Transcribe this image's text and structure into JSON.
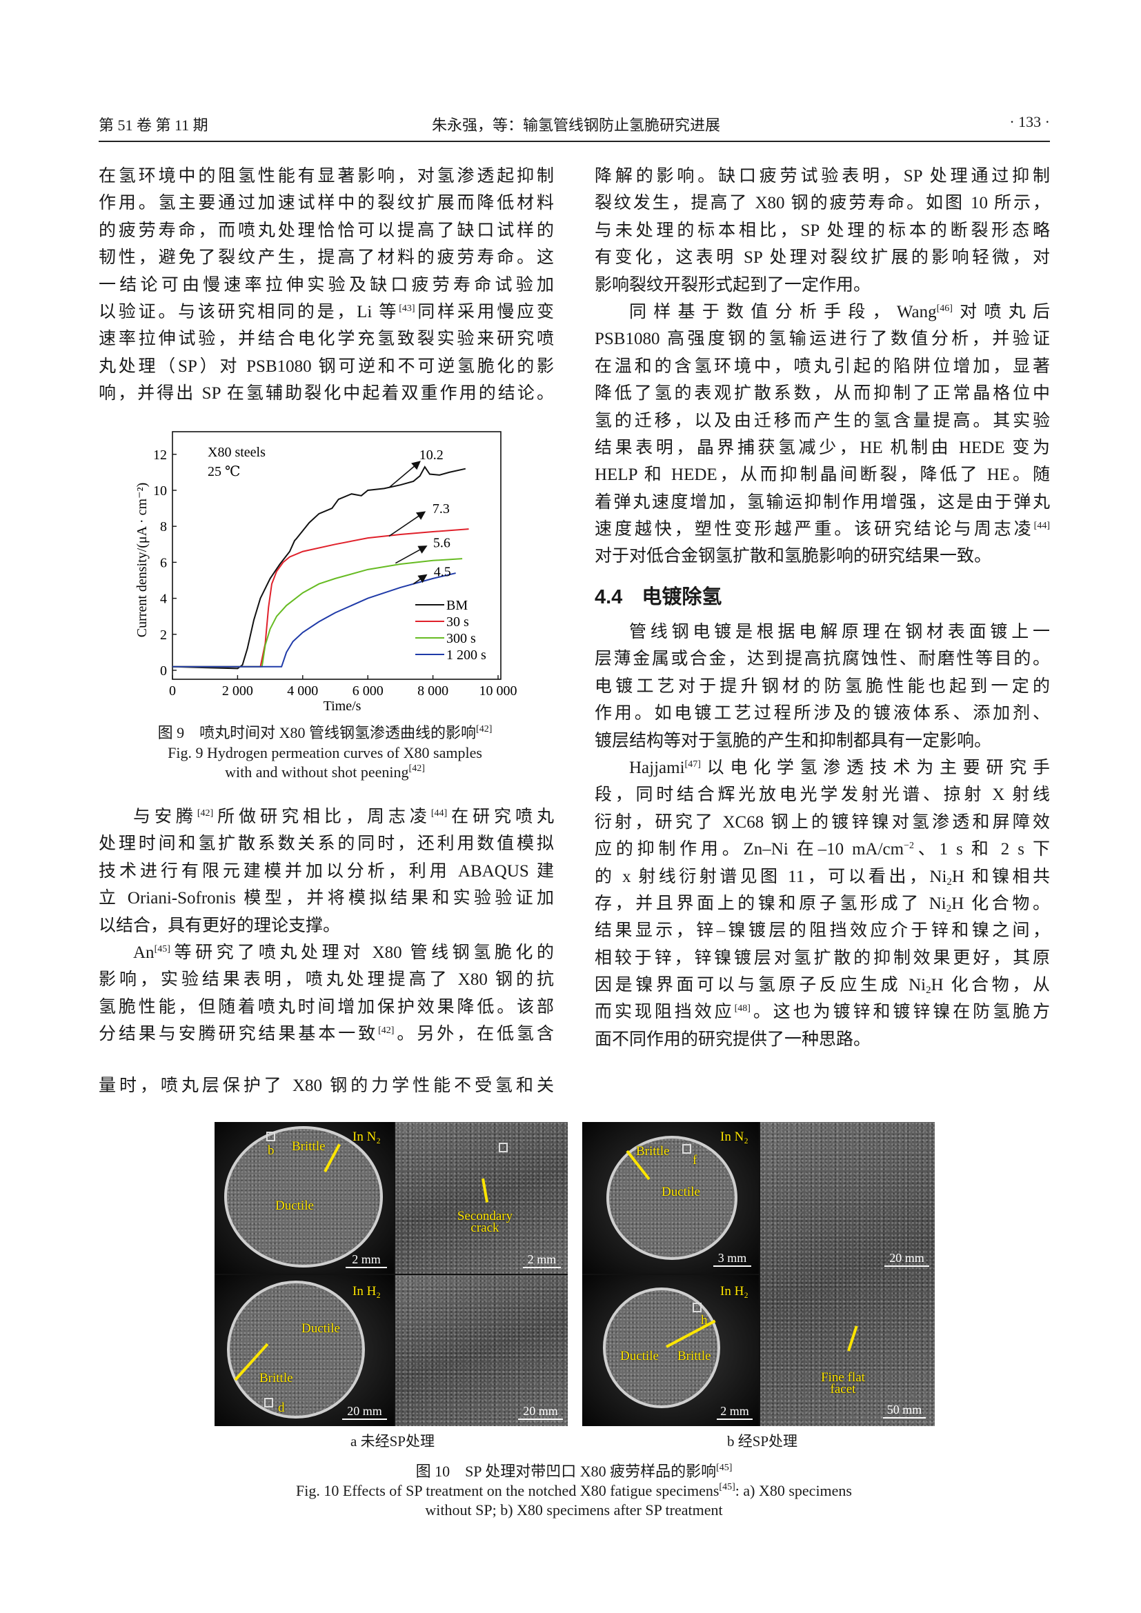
{
  "header": {
    "volume_issue": "第 51 卷  第 11 期",
    "running_title": "朱永强，等：输氢管线钢防止氢脆研究进展",
    "page_number": "· 133 ·"
  },
  "left_top": {
    "paragraphs": [
      {
        "indent": false,
        "lines": [
          "在氢环境中的阻氢性能有显著影响，对氢渗透起抑制",
          "作用。氢主要通过加速试样中的裂纹扩展而降低材料",
          "的疲劳寿命，而喷丸处理恰恰可以提高了缺口试样的",
          "韧性，避免了裂纹产生，提高了材料的疲劳寿命。这",
          "一结论可由慢速率拉伸实验及缺口疲劳寿命试验加",
          [
            "以验证。与该研究相同的是，Li 等",
            {
              "sup": "[43]"
            },
            "同样采用慢应变"
          ],
          "速率拉伸试验，并结合电化学充氢致裂实验来研究喷",
          "丸处理（SP）对 PSB1080 钢可逆和不可逆氢脆化的影",
          "响，并得出 SP 在氢辅助裂化中起着双重作用的结论。"
        ]
      }
    ]
  },
  "left_bottom": {
    "paragraphs": [
      {
        "indent": true,
        "lines": [
          [
            "与安腾",
            {
              "sup": "[42]"
            },
            "所做研究相比，周志凌",
            {
              "sup": "[44]"
            },
            "在研究喷丸"
          ],
          "处理时间和氢扩散系数关系的同时，还利用数值模拟",
          "技术进行有限元建模并加以分析，利用 ABAQUS 建",
          "立 Oriani-Sofronis 模型，并将模拟结果和实验验证加",
          "以结合，具有更好的理论支撑。"
        ]
      },
      {
        "indent": true,
        "lines": [
          [
            "An",
            {
              "sup": "[45]"
            },
            "等研究了喷丸处理对 X80 管线钢氢脆化的"
          ],
          "影响，实验结果表明，喷丸处理提高了 X80 钢的抗",
          "氢脆性能，但随着喷丸时间增加保护效果降低。该部",
          [
            "分结果与安腾研究结果基本一致",
            {
              "sup": "[42]"
            },
            "。另外，在低氢含"
          ]
        ]
      }
    ]
  },
  "left_last": {
    "paragraphs": [
      {
        "indent": false,
        "cont": true,
        "lines": [
          "量时，喷丸层保护了 X80 钢的力学性能不受氢和关"
        ]
      }
    ]
  },
  "right_top": {
    "paragraphs": [
      {
        "indent": false,
        "lines": [
          "降解的影响。缺口疲劳试验表明，SP 处理通过抑制",
          "裂纹发生，提高了 X80 钢的疲劳寿命。如图 10 所示，",
          "与未处理的标本相比，SP 处理的标本的断裂形态略",
          "有变化，这表明 SP 处理对裂纹扩展的影响轻微，对",
          "影响裂纹开裂形式起到了一定作用。"
        ]
      },
      {
        "indent": true,
        "lines": [
          [
            "同样基于数值分析手段，Wang",
            {
              "sup": "[46]"
            },
            "对喷丸后"
          ],
          "PSB1080 高强度钢的氢输运进行了数值分析，并验证",
          "在温和的含氢环境中，喷丸引起的陷阱位增加，显著",
          "降低了氢的表观扩散系数，从而抑制了正常晶格位中",
          "氢的迁移，以及由迁移而产生的氢含量提高。其实验",
          "结果表明，晶界捕获氢减少，HE 机制由 HEDE 变为",
          "HELP 和 HEDE，从而抑制晶间断裂，降低了 HE。随",
          "着弹丸速度增加，氢输运抑制作用增强，这是由于弹丸",
          [
            "速度越快，塑性变形越严重。该研究结论与周志凌",
            {
              "sup": "[44]"
            }
          ],
          "对于对低合金钢氢扩散和氢脆影响的研究结果一致。"
        ]
      }
    ]
  },
  "section": {
    "number": "4.4",
    "title": "电镀除氢"
  },
  "right_bottom": {
    "paragraphs": [
      {
        "indent": true,
        "lines": [
          "管线钢电镀是根据电解原理在钢材表面镀上一",
          "层薄金属或合金，达到提高抗腐蚀性、耐磨性等目的。",
          "电镀工艺对于提升钢材的防氢脆性能也起到一定的",
          "作用。如电镀工艺过程所涉及的镀液体系、添加剂、",
          "镀层结构等对于氢脆的产生和抑制都具有一定影响。"
        ]
      },
      {
        "indent": true,
        "lines": [
          [
            "Hajjami",
            {
              "sup": "[47]"
            },
            "以电化学氢渗透技术为主要研究手"
          ],
          "段，同时结合辉光放电光学发射光谱、掠射 X 射线",
          "衍射，研究了 XC68 钢上的镀锌镍对氢渗透和屏障效",
          [
            "应的抑制作用。Zn–Ni 在–10 mA/cm",
            {
              "sup": "−2"
            },
            "、1 s 和 2 s 下"
          ],
          [
            "的 x 射线衍射谱见图 11，可以看出，Ni",
            {
              "sub": "2"
            },
            "H 和镍相共"
          ],
          [
            "存，并且界面上的镍和原子氢形成了 Ni",
            {
              "sub": "2"
            },
            "H 化合物。"
          ],
          "结果显示，锌–镍镀层的阻挡效应介于锌和镍之间，",
          "相较于锌，锌镍镀层对氢扩散的抑制效果更好，其原",
          [
            "因是镍界面可以与氢原子反应生成 Ni",
            {
              "sub": "2"
            },
            "H 化合物，从"
          ],
          [
            "而实现阻挡效应",
            {
              "sup": "[48]"
            },
            "。这也为镀锌和镀锌镍在防氢脆方"
          ],
          "面不同作用的研究提供了一种思路。"
        ]
      }
    ]
  },
  "fig9": {
    "caption_cn": "图 9　喷丸时间对 X80 管线钢氢渗透曲线的影响",
    "caption_cn_ref": "[42]",
    "caption_en_1": "Fig. 9 Hydrogen permeation curves of X80 samples",
    "caption_en_2": "with and without shot peening",
    "caption_en_ref": "[42]"
  },
  "chart_data": {
    "type": "line",
    "xlabel": "Time/s",
    "ylabel": "Current density/(μA · cm⁻²)",
    "xlim": [
      0,
      10000
    ],
    "ylim": [
      0,
      13
    ],
    "xticks": [
      0,
      2000,
      4000,
      6000,
      8000,
      10000
    ],
    "xtick_labels": [
      "0",
      "2 000",
      "4 000",
      "6 000",
      "8 000",
      "10 000"
    ],
    "yticks": [
      0,
      2,
      4,
      6,
      8,
      10,
      12
    ],
    "ytick_labels": [
      "0",
      "2",
      "4",
      "6",
      "8",
      "10",
      "12"
    ],
    "grid": false,
    "legend_position": "bottom-right",
    "text_annotations": [
      "X80 steels",
      "25 ℃"
    ],
    "series": [
      {
        "name": "BM",
        "color": "#111111",
        "x": [
          0,
          1000,
          2000,
          2150,
          2300,
          2500,
          2700,
          3000,
          3300,
          3600,
          3750,
          3800,
          4200,
          4500,
          4900,
          5100,
          5500,
          5800,
          6000,
          6500,
          7000,
          7400,
          7600,
          7750,
          7900,
          8200,
          8500,
          9000
        ],
        "y": [
          0.2,
          0.15,
          0.1,
          0.3,
          1.2,
          2.8,
          4.0,
          5.1,
          5.9,
          6.6,
          7.2,
          7.3,
          8.2,
          8.7,
          9.0,
          9.5,
          9.8,
          9.7,
          10.0,
          10.1,
          10.3,
          10.5,
          10.8,
          11.3,
          10.9,
          10.85,
          11.0,
          11.2
        ]
      },
      {
        "name": "30 s",
        "color": "#e0202a",
        "x": [
          0,
          2700,
          2850,
          2950,
          3050,
          3200,
          3400,
          3600,
          4000,
          5000,
          6000,
          7000,
          8000,
          9100
        ],
        "y": [
          0.2,
          0.2,
          1.5,
          3.5,
          4.8,
          5.5,
          6.0,
          6.3,
          6.6,
          7.0,
          7.35,
          7.55,
          7.7,
          7.85
        ]
      },
      {
        "name": "300 s",
        "color": "#66bb22",
        "x": [
          0,
          2750,
          2850,
          3000,
          3200,
          3500,
          4000,
          4500,
          5000,
          6000,
          7000,
          8000,
          8900
        ],
        "y": [
          0.2,
          0.2,
          1.4,
          2.3,
          3.0,
          3.6,
          4.3,
          4.8,
          5.1,
          5.6,
          5.9,
          6.1,
          6.2
        ]
      },
      {
        "name": "1 200 s",
        "color": "#1f3aa8",
        "x": [
          0,
          3350,
          3500,
          3700,
          4000,
          4500,
          5000,
          6000,
          7000,
          8000,
          8700
        ],
        "y": [
          0.2,
          0.2,
          1.0,
          1.6,
          2.1,
          2.7,
          3.2,
          4.0,
          4.6,
          5.1,
          5.4
        ]
      }
    ],
    "annotations": [
      {
        "label": "10.2",
        "x": 7950,
        "y": 12.0,
        "arrow_from": [
          6650,
          10.15
        ],
        "arrow_to": [
          7600,
          11.6
        ]
      },
      {
        "label": "7.3",
        "x": 8250,
        "y": 9.0,
        "arrow_from": [
          6650,
          7.45
        ],
        "arrow_to": [
          7750,
          8.8
        ]
      },
      {
        "label": "5.6",
        "x": 8270,
        "y": 7.1,
        "arrow_from": [
          6850,
          5.95
        ],
        "arrow_to": [
          7800,
          6.9
        ]
      },
      {
        "label": "4.5",
        "x": 8290,
        "y": 5.5,
        "arrow_from": [
          7400,
          4.8
        ],
        "arrow_to": [
          7800,
          5.3
        ]
      }
    ]
  },
  "fig10": {
    "panel_a": {
      "subcaption": "a 未经SP处理",
      "in_n2": "In N₂",
      "in_h2": "In H₂",
      "brittle_top": "Brittle",
      "box_b": "b",
      "ductile_top": "Ductile",
      "scale_tl": "2 mm",
      "secondary_crack": "Secondary crack",
      "scale_tr": "2 mm",
      "ductile_bottom": "Ductile",
      "brittle_bottom": "Brittle",
      "box_d": "d",
      "scale_bl": "20 mm",
      "scale_br": "20 mm"
    },
    "panel_b": {
      "subcaption": "b 经SP处理",
      "in_n2": "In N₂",
      "in_h2": "In H₂",
      "brittle_top": "Brittle",
      "box_f": "f",
      "ductile_top": "Ductile",
      "scale_tl": "3 mm",
      "scale_right_top": "20 mm",
      "fine_flat_facet": "Fine flat facet",
      "scale_right_bottom": "50 mm",
      "box_h": "h",
      "ductile_bottom": "Ductile",
      "brittle_bottom": "Brittle",
      "scale_bl": "2 mm"
    },
    "caption_cn": "图 10　SP 处理对带凹口 X80 疲劳样品的影响",
    "caption_cn_ref": "[45]",
    "caption_en_1a": "Fig. 10 Effects of SP treatment on the notched X80 fatigue specimens",
    "caption_en_ref": "[45]",
    "caption_en_1b": ": a) X80 specimens",
    "caption_en_2": "without SP; b) X80 specimens after SP treatment"
  }
}
